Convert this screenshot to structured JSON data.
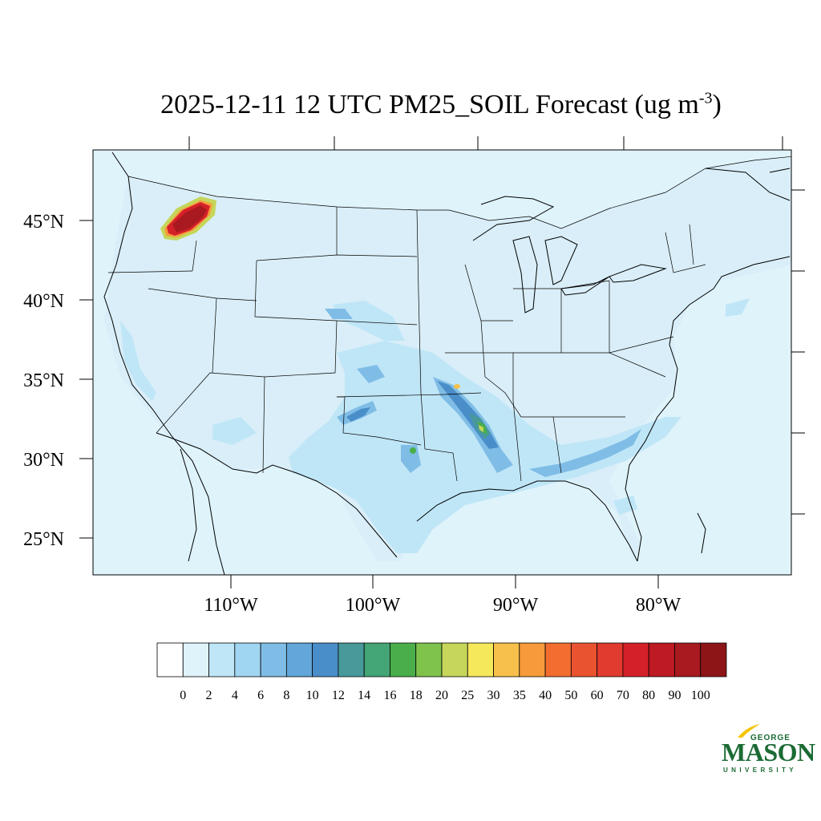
{
  "title": {
    "main": "2025-12-11 12 UTC PM25_SOIL Forecast (ug m",
    "exponent": "-3",
    "close": ")"
  },
  "map": {
    "background_color": "#dff3fb",
    "lat_labels": [
      "45°N",
      "40°N",
      "35°N",
      "30°N",
      "25°N"
    ],
    "lon_labels": [
      "110°W",
      "100°W",
      "90°W",
      "80°W"
    ]
  },
  "colorbar": {
    "colors": [
      "#ffffff",
      "#dff3fb",
      "#bfe6f7",
      "#a0d6f2",
      "#7fbde6",
      "#62a6da",
      "#4a8ec9",
      "#47999a",
      "#44a576",
      "#4aaf4a",
      "#7fc34c",
      "#c5d65a",
      "#f6e85b",
      "#f7c04a",
      "#f79a3b",
      "#f26d2f",
      "#ea5330",
      "#e03b2e",
      "#d42129",
      "#bd1a24",
      "#a81a1f",
      "#8d1518"
    ],
    "labels": [
      "0",
      "2",
      "4",
      "6",
      "8",
      "10",
      "12",
      "14",
      "16",
      "18",
      "20",
      "25",
      "30",
      "35",
      "40",
      "50",
      "60",
      "70",
      "80",
      "90",
      "100"
    ]
  },
  "logo": {
    "line1": "GEORGE",
    "line2": "MASON",
    "line3": "UNIVERSITY",
    "color": "#1b6b34",
    "accent": "#f5c400"
  }
}
